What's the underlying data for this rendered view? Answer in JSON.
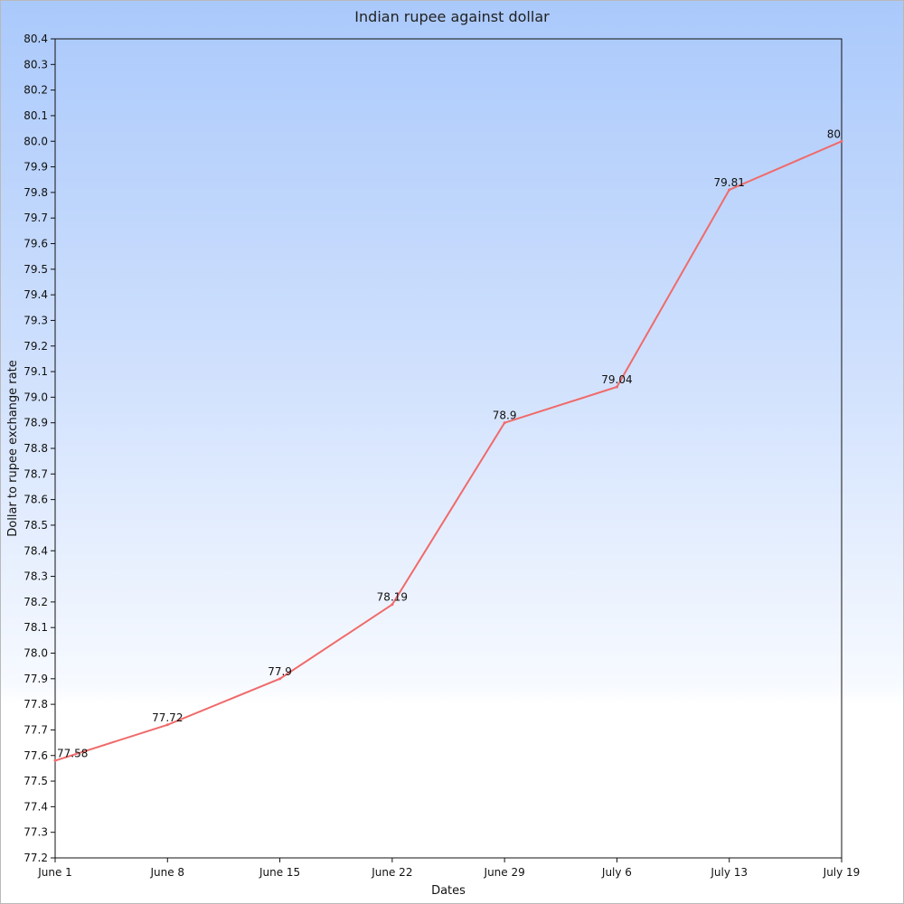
{
  "chart_data": {
    "type": "line",
    "title": "Indian rupee against dollar",
    "xlabel": "Dates",
    "ylabel": "Dollar to rupee exchange rate",
    "categories": [
      "June 1",
      "June 8",
      "June 15",
      "June 22",
      "June 29",
      "July 6",
      "July 13",
      "July 19"
    ],
    "series": [
      {
        "values": [
          77.58,
          77.72,
          77.9,
          78.19,
          78.9,
          79.04,
          79.81,
          80
        ],
        "labels": [
          "77.58",
          "77.72",
          "77.9",
          "78.19",
          "78.9",
          "79.04",
          "79.81",
          "80"
        ],
        "color": "#f06a6a"
      }
    ],
    "ylim": [
      77.2,
      80.4
    ],
    "yticks": [
      "77.2",
      "77.3",
      "77.4",
      "77.5",
      "77.6",
      "77.7",
      "77.8",
      "77.9",
      "78.0",
      "78.1",
      "78.2",
      "78.3",
      "78.4",
      "78.5",
      "78.6",
      "78.7",
      "78.8",
      "78.9",
      "79.0",
      "79.1",
      "79.2",
      "79.3",
      "79.4",
      "79.5",
      "79.6",
      "79.7",
      "79.8",
      "79.9",
      "80.0",
      "80.1",
      "80.2",
      "80.3",
      "80.4"
    ],
    "grid": false,
    "legend": "none"
  }
}
